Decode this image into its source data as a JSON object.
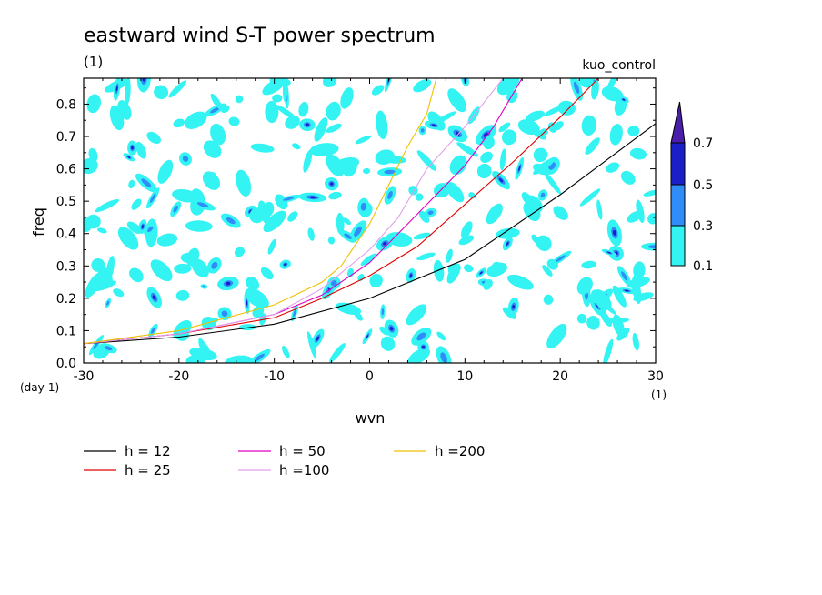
{
  "chart_data": {
    "type": "line",
    "title": "eastward wind S-T power spectrum",
    "subtitle_left": "(1)",
    "subtitle_right": "kuo_control",
    "xlabel": "wvn",
    "ylabel": "freq",
    "x_unit": "(1)",
    "y_unit": "(day-1)",
    "xlim": [
      -30,
      30
    ],
    "ylim": [
      0,
      0.88
    ],
    "xticks": [
      -30,
      -20,
      -10,
      0,
      10,
      20,
      30
    ],
    "yticks": [
      0.0,
      0.1,
      0.2,
      0.3,
      0.4,
      0.5,
      0.6,
      0.7,
      0.8
    ],
    "x_tick_labels": [
      "-30",
      "-20",
      "-10",
      "0",
      "10",
      "20",
      "30"
    ],
    "y_tick_labels": [
      "0.0",
      "0.1",
      "0.2",
      "0.3",
      "0.4",
      "0.5",
      "0.6",
      "0.7",
      "0.8"
    ],
    "contour_levels": [
      0.1,
      0.3,
      0.5,
      0.7
    ],
    "colorbar_labels": [
      "0.1",
      "0.3",
      "0.5",
      "0.7"
    ],
    "contour_colors": [
      "#33f3f3",
      "#2f8cf8",
      "#1b1fc8",
      "#4a1ea8"
    ],
    "contour_note": "power spectrum filled contours scattered across the whole domain",
    "series": [
      {
        "name": "h = 12",
        "color": "#000000",
        "x": [
          -30,
          -20,
          -10,
          0,
          10,
          20,
          30
        ],
        "y": [
          0.06,
          0.08,
          0.12,
          0.2,
          0.32,
          0.52,
          0.74
        ]
      },
      {
        "name": "h = 25",
        "color": "#e00000",
        "x": [
          -30,
          -20,
          -10,
          -5,
          0,
          5,
          10,
          15,
          20,
          24
        ],
        "y": [
          0.06,
          0.09,
          0.14,
          0.2,
          0.27,
          0.36,
          0.49,
          0.62,
          0.76,
          0.88
        ]
      },
      {
        "name": "h = 50",
        "color": "#e000c0",
        "x": [
          -30,
          -20,
          -10,
          -5,
          0,
          5,
          10,
          13,
          16
        ],
        "y": [
          0.06,
          0.09,
          0.15,
          0.21,
          0.31,
          0.46,
          0.61,
          0.73,
          0.88
        ]
      },
      {
        "name": "h =100",
        "color": "#e0a0e8",
        "x": [
          -30,
          -20,
          -10,
          -5,
          0,
          3,
          6,
          10,
          14
        ],
        "y": [
          0.06,
          0.09,
          0.15,
          0.23,
          0.35,
          0.45,
          0.6,
          0.73,
          0.88
        ]
      },
      {
        "name": "h =200",
        "color": "#f0c000",
        "x": [
          -30,
          -20,
          -10,
          -5,
          -3,
          0,
          2,
          4,
          6,
          7
        ],
        "y": [
          0.06,
          0.1,
          0.18,
          0.25,
          0.3,
          0.43,
          0.55,
          0.67,
          0.77,
          0.88
        ]
      }
    ],
    "legend_position": "bottom",
    "grid": false
  }
}
